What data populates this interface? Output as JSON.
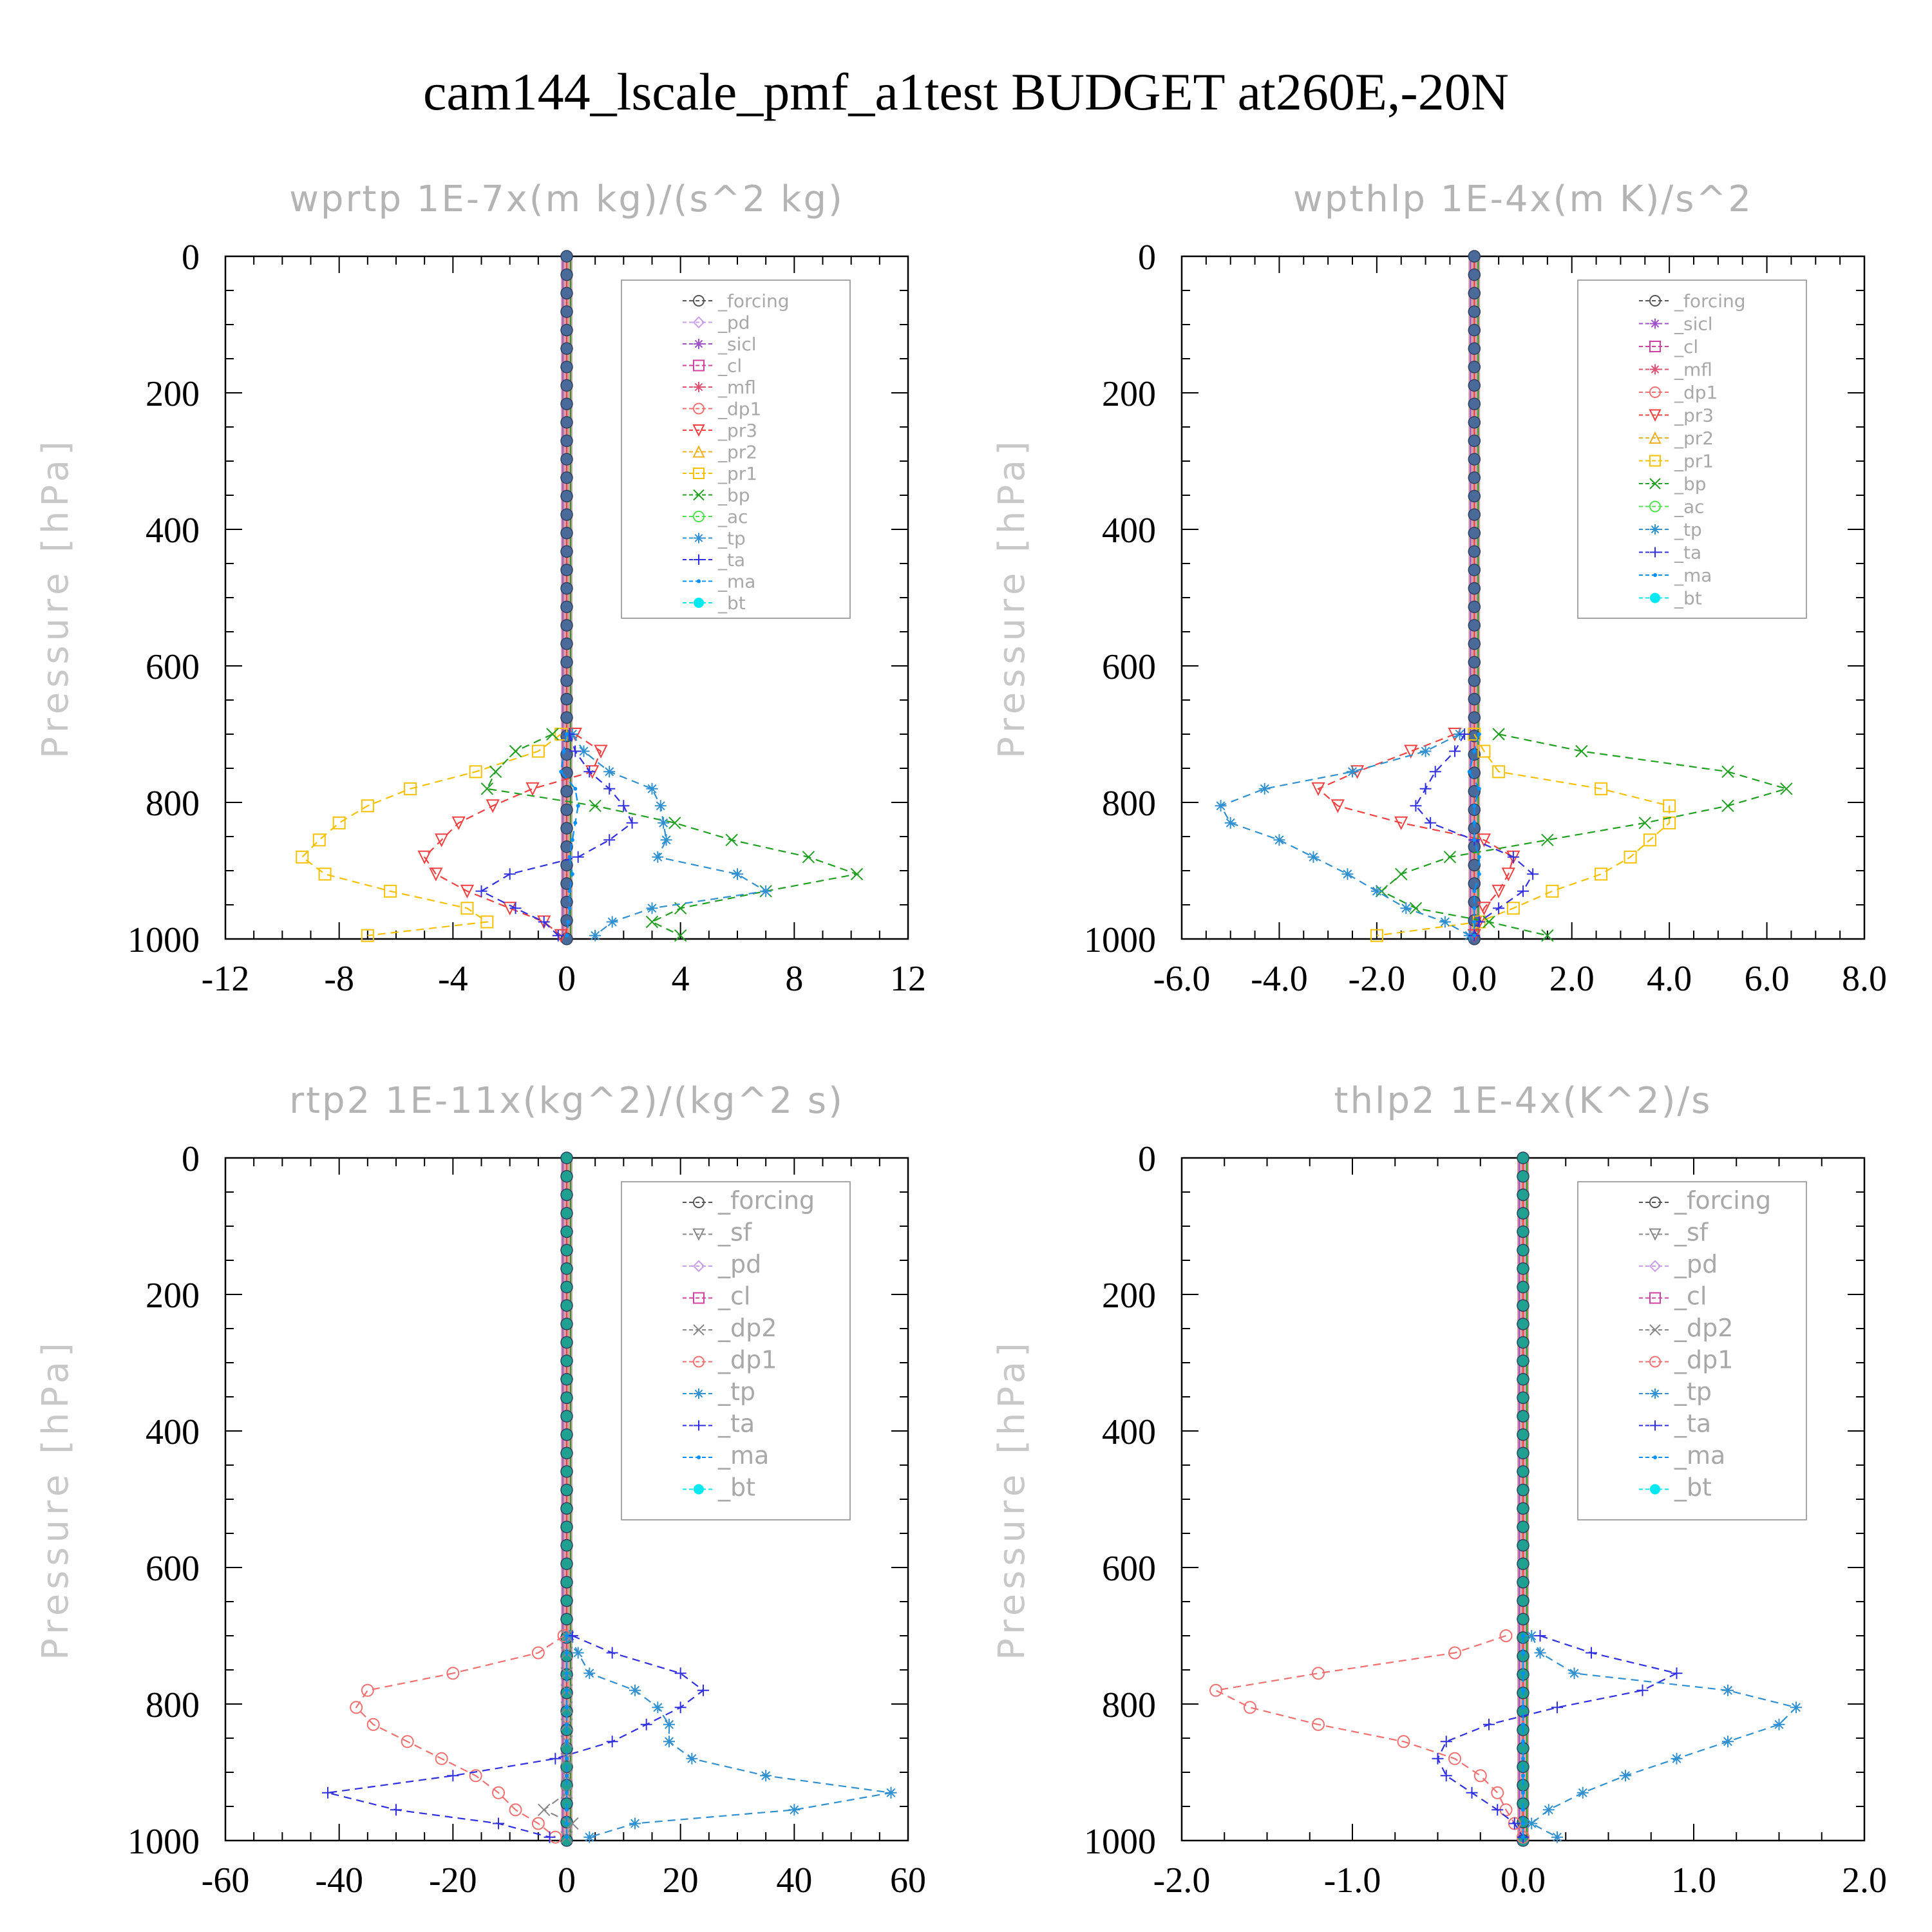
{
  "main_title": "cam144_lscale_pmf_a1test  BUDGET at260E,-20N",
  "colors": {
    "_forcing": "#555555",
    "_pd": "#c9a0e8",
    "_sicl": "#a050c8",
    "_cl": "#d040a0",
    "_mfl": "#e05070",
    "_dp1": "#f07070",
    "_pr3": "#f04040",
    "_pr2": "#f0b020",
    "_pr1": "#f5c000",
    "_bp": "#20a020",
    "_ac": "#50e050",
    "_tp": "#3090d0",
    "_ta": "#3030e0",
    "_ma": "#0090ff",
    "_bt": "#00e8f0"
  },
  "chart_data": [
    {
      "type": "line",
      "title": "wprtp   1E-7x(m kg)/(s^2 kg)",
      "ylabel": "Pressure [hPa]",
      "xlim": [
        -12,
        12
      ],
      "ylim": [
        1000,
        0
      ],
      "xticks": [
        "-12",
        "-8",
        "-4",
        "0",
        "4",
        "8",
        "12"
      ],
      "yticks": [
        "0",
        "200",
        "400",
        "600",
        "800",
        "1000"
      ],
      "legend": [
        "_forcing",
        "_pd",
        "_sicl",
        "_cl",
        "_mfl",
        "_dp1",
        "_pr3",
        "_pr2",
        "_pr1",
        "_bp",
        "_ac",
        "_tp",
        "_ta",
        "_ma",
        "_bt"
      ],
      "y": [
        700,
        725,
        755,
        780,
        805,
        830,
        855,
        880,
        905,
        930,
        955,
        975,
        995
      ],
      "series": [
        {
          "name": "_pr1",
          "x": [
            -0.2,
            -1.0,
            -3.2,
            -5.5,
            -7.0,
            -8.0,
            -8.7,
            -9.3,
            -8.5,
            -6.2,
            -3.5,
            -2.8,
            -7.0
          ]
        },
        {
          "name": "_pr3",
          "x": [
            0.3,
            1.2,
            0.9,
            -1.2,
            -2.6,
            -3.8,
            -4.4,
            -5.0,
            -4.6,
            -3.5,
            -2.0,
            -0.8,
            -0.2
          ]
        },
        {
          "name": "_bp",
          "x": [
            -0.5,
            -1.8,
            -2.5,
            -2.8,
            1.0,
            3.8,
            5.8,
            8.5,
            10.2,
            7.0,
            4.0,
            3.0,
            4.0
          ]
        },
        {
          "name": "_tp",
          "x": [
            0.2,
            0.6,
            1.5,
            3.0,
            3.3,
            3.4,
            3.5,
            3.2,
            6.0,
            7.0,
            3.0,
            1.6,
            1.0
          ]
        },
        {
          "name": "_ta",
          "x": [
            0.1,
            0.3,
            0.8,
            1.5,
            2.0,
            2.3,
            1.5,
            0.4,
            -2.0,
            -3.0,
            -1.8,
            -0.8,
            -0.3
          ]
        },
        {
          "name": "_ma",
          "x": [
            0,
            -0.1,
            -0.2,
            0.3,
            0.4,
            0.3,
            0.2,
            0.1,
            0.2,
            0.1,
            0.1,
            0.05,
            0
          ]
        }
      ]
    },
    {
      "type": "line",
      "title": "wpthlp   1E-4x(m K)/s^2",
      "ylabel": "Pressure [hPa]",
      "xlim": [
        -6.0,
        8.0
      ],
      "ylim": [
        1000,
        0
      ],
      "xticks": [
        "-6.0",
        "-4.0",
        "-2.0",
        "0.0",
        "2.0",
        "4.0",
        "6.0",
        "8.0"
      ],
      "yticks": [
        "0",
        "200",
        "400",
        "600",
        "800",
        "1000"
      ],
      "legend": [
        "_forcing",
        "_sicl",
        "_cl",
        "_mfl",
        "_dp1",
        "_pr3",
        "_pr2",
        "_pr1",
        "_bp",
        "_ac",
        "_tp",
        "_ta",
        "_ma",
        "_bt"
      ],
      "y": [
        700,
        725,
        755,
        780,
        805,
        830,
        855,
        880,
        905,
        930,
        955,
        975,
        995
      ],
      "series": [
        {
          "name": "_pr3",
          "x": [
            -0.4,
            -1.3,
            -2.4,
            -3.2,
            -2.8,
            -1.5,
            0.2,
            0.8,
            0.7,
            0.5,
            0.2,
            0.1,
            0.0
          ]
        },
        {
          "name": "_pr1",
          "x": [
            0.0,
            0.2,
            0.5,
            2.6,
            4.0,
            4.0,
            3.6,
            3.2,
            2.6,
            1.6,
            0.8,
            0.1,
            -2.0
          ]
        },
        {
          "name": "_bp",
          "x": [
            0.5,
            2.2,
            5.2,
            6.4,
            5.2,
            3.5,
            1.5,
            -0.5,
            -1.5,
            -1.9,
            -1.2,
            0.3,
            1.5
          ]
        },
        {
          "name": "_tp",
          "x": [
            -0.3,
            -1.0,
            -2.5,
            -4.3,
            -5.2,
            -5.0,
            -4.0,
            -3.3,
            -2.6,
            -2.0,
            -1.4,
            -0.6,
            -0.1
          ]
        },
        {
          "name": "_ta",
          "x": [
            -0.2,
            -0.4,
            -0.8,
            -1.0,
            -1.2,
            -0.9,
            0.0,
            0.8,
            1.2,
            1.0,
            0.5,
            0.1,
            0.0
          ]
        },
        {
          "name": "_ma",
          "x": [
            0.1,
            0.0,
            -0.1,
            0.1,
            0.0,
            0.0,
            0.0,
            0.1,
            0.1,
            0.0,
            0.0,
            0.0,
            0.0
          ]
        }
      ]
    },
    {
      "type": "line",
      "title": "rtp2   1E-11x(kg^2)/(kg^2 s)",
      "ylabel": "Pressure [hPa]",
      "xlim": [
        -60,
        60
      ],
      "ylim": [
        1000,
        0
      ],
      "xticks": [
        "-60",
        "-40",
        "-20",
        "0",
        "20",
        "40",
        "60"
      ],
      "yticks": [
        "0",
        "200",
        "400",
        "600",
        "800",
        "1000"
      ],
      "legend": [
        "_forcing",
        "_sf",
        "_pd",
        "_cl",
        "_dp2",
        "_dp1",
        "_tp",
        "_ta",
        "_ma",
        "_bt"
      ],
      "y": [
        700,
        725,
        755,
        780,
        805,
        830,
        855,
        880,
        905,
        930,
        955,
        975,
        995
      ],
      "series": [
        {
          "name": "_dp1",
          "x": [
            -0.5,
            -5.0,
            -20.0,
            -35.0,
            -37.0,
            -34.0,
            -28.0,
            -22.0,
            -16.0,
            -12.0,
            -9.0,
            -5.0,
            -2.0
          ]
        },
        {
          "name": "_tp",
          "x": [
            0.5,
            2.0,
            4.0,
            12.0,
            16.0,
            18.0,
            18.0,
            22.0,
            35.0,
            57.0,
            40.0,
            12.0,
            4.0
          ]
        },
        {
          "name": "_ta",
          "x": [
            1.0,
            8.0,
            20.0,
            24.0,
            20.0,
            14.0,
            8.0,
            -2.0,
            -20.0,
            -42.0,
            -30.0,
            -12.0,
            -3.0
          ]
        },
        {
          "name": "_dp2",
          "x": [
            0,
            0,
            0,
            0,
            0,
            0,
            0,
            0,
            0,
            0,
            -4.0,
            1.0,
            0.0
          ]
        },
        {
          "name": "_ma",
          "x": [
            0,
            0,
            0,
            0,
            0,
            0,
            0,
            0,
            0,
            0,
            0,
            0,
            0
          ]
        }
      ]
    },
    {
      "type": "line",
      "title": "thlp2   1E-4x(K^2)/s",
      "ylabel": "Pressure [hPa]",
      "xlim": [
        -2.0,
        2.0
      ],
      "ylim": [
        1000,
        0
      ],
      "xticks": [
        "-2.0",
        "-1.0",
        "0.0",
        "1.0",
        "2.0"
      ],
      "yticks": [
        "0",
        "200",
        "400",
        "600",
        "800",
        "1000"
      ],
      "legend": [
        "_forcing",
        "_sf",
        "_pd",
        "_cl",
        "_dp2",
        "_dp1",
        "_tp",
        "_ta",
        "_ma",
        "_bt"
      ],
      "y": [
        700,
        725,
        755,
        780,
        805,
        830,
        855,
        880,
        905,
        930,
        955,
        975,
        995
      ],
      "series": [
        {
          "name": "_dp1",
          "x": [
            -0.1,
            -0.4,
            -1.2,
            -1.8,
            -1.6,
            -1.2,
            -0.7,
            -0.4,
            -0.25,
            -0.15,
            -0.1,
            -0.05,
            0.0
          ]
        },
        {
          "name": "_tp",
          "x": [
            0.05,
            0.1,
            0.3,
            1.2,
            1.6,
            1.5,
            1.2,
            0.9,
            0.6,
            0.35,
            0.15,
            0.05,
            0.2
          ]
        },
        {
          "name": "_ta",
          "x": [
            0.1,
            0.4,
            0.9,
            0.7,
            0.2,
            -0.2,
            -0.45,
            -0.5,
            -0.45,
            -0.3,
            -0.15,
            -0.05,
            0.0
          ]
        },
        {
          "name": "_ma",
          "x": [
            0,
            0,
            0,
            0,
            0,
            0,
            0,
            0,
            0,
            0,
            0,
            0,
            0
          ]
        }
      ]
    }
  ]
}
